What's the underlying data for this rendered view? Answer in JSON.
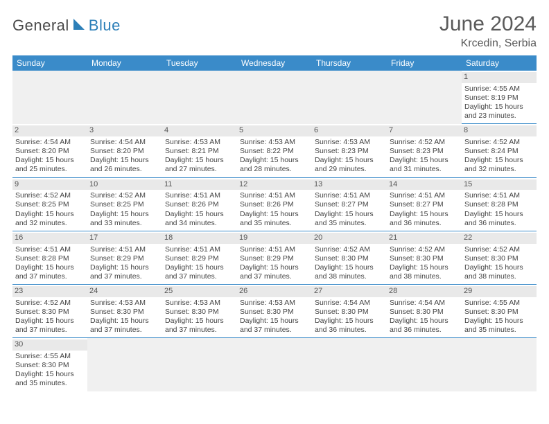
{
  "logo": {
    "text1": "General",
    "text2": "Blue"
  },
  "title": "June 2024",
  "location": "Krcedin, Serbia",
  "colors": {
    "header_bg": "#3a8bc9",
    "header_text": "#ffffff",
    "logo_accent": "#2c7fb8",
    "text": "#444444",
    "daynum_bg": "#e9e9e9",
    "rule": "#3a8bc9"
  },
  "day_headers": [
    "Sunday",
    "Monday",
    "Tuesday",
    "Wednesday",
    "Thursday",
    "Friday",
    "Saturday"
  ],
  "days": {
    "1": {
      "sunrise": "4:55 AM",
      "sunset": "8:19 PM",
      "daylight": "15 hours and 23 minutes."
    },
    "2": {
      "sunrise": "4:54 AM",
      "sunset": "8:20 PM",
      "daylight": "15 hours and 25 minutes."
    },
    "3": {
      "sunrise": "4:54 AM",
      "sunset": "8:20 PM",
      "daylight": "15 hours and 26 minutes."
    },
    "4": {
      "sunrise": "4:53 AM",
      "sunset": "8:21 PM",
      "daylight": "15 hours and 27 minutes."
    },
    "5": {
      "sunrise": "4:53 AM",
      "sunset": "8:22 PM",
      "daylight": "15 hours and 28 minutes."
    },
    "6": {
      "sunrise": "4:53 AM",
      "sunset": "8:23 PM",
      "daylight": "15 hours and 29 minutes."
    },
    "7": {
      "sunrise": "4:52 AM",
      "sunset": "8:23 PM",
      "daylight": "15 hours and 31 minutes."
    },
    "8": {
      "sunrise": "4:52 AM",
      "sunset": "8:24 PM",
      "daylight": "15 hours and 32 minutes."
    },
    "9": {
      "sunrise": "4:52 AM",
      "sunset": "8:25 PM",
      "daylight": "15 hours and 32 minutes."
    },
    "10": {
      "sunrise": "4:52 AM",
      "sunset": "8:25 PM",
      "daylight": "15 hours and 33 minutes."
    },
    "11": {
      "sunrise": "4:51 AM",
      "sunset": "8:26 PM",
      "daylight": "15 hours and 34 minutes."
    },
    "12": {
      "sunrise": "4:51 AM",
      "sunset": "8:26 PM",
      "daylight": "15 hours and 35 minutes."
    },
    "13": {
      "sunrise": "4:51 AM",
      "sunset": "8:27 PM",
      "daylight": "15 hours and 35 minutes."
    },
    "14": {
      "sunrise": "4:51 AM",
      "sunset": "8:27 PM",
      "daylight": "15 hours and 36 minutes."
    },
    "15": {
      "sunrise": "4:51 AM",
      "sunset": "8:28 PM",
      "daylight": "15 hours and 36 minutes."
    },
    "16": {
      "sunrise": "4:51 AM",
      "sunset": "8:28 PM",
      "daylight": "15 hours and 37 minutes."
    },
    "17": {
      "sunrise": "4:51 AM",
      "sunset": "8:29 PM",
      "daylight": "15 hours and 37 minutes."
    },
    "18": {
      "sunrise": "4:51 AM",
      "sunset": "8:29 PM",
      "daylight": "15 hours and 37 minutes."
    },
    "19": {
      "sunrise": "4:51 AM",
      "sunset": "8:29 PM",
      "daylight": "15 hours and 37 minutes."
    },
    "20": {
      "sunrise": "4:52 AM",
      "sunset": "8:30 PM",
      "daylight": "15 hours and 38 minutes."
    },
    "21": {
      "sunrise": "4:52 AM",
      "sunset": "8:30 PM",
      "daylight": "15 hours and 38 minutes."
    },
    "22": {
      "sunrise": "4:52 AM",
      "sunset": "8:30 PM",
      "daylight": "15 hours and 38 minutes."
    },
    "23": {
      "sunrise": "4:52 AM",
      "sunset": "8:30 PM",
      "daylight": "15 hours and 37 minutes."
    },
    "24": {
      "sunrise": "4:53 AM",
      "sunset": "8:30 PM",
      "daylight": "15 hours and 37 minutes."
    },
    "25": {
      "sunrise": "4:53 AM",
      "sunset": "8:30 PM",
      "daylight": "15 hours and 37 minutes."
    },
    "26": {
      "sunrise": "4:53 AM",
      "sunset": "8:30 PM",
      "daylight": "15 hours and 37 minutes."
    },
    "27": {
      "sunrise": "4:54 AM",
      "sunset": "8:30 PM",
      "daylight": "15 hours and 36 minutes."
    },
    "28": {
      "sunrise": "4:54 AM",
      "sunset": "8:30 PM",
      "daylight": "15 hours and 36 minutes."
    },
    "29": {
      "sunrise": "4:55 AM",
      "sunset": "8:30 PM",
      "daylight": "15 hours and 35 minutes."
    },
    "30": {
      "sunrise": "4:55 AM",
      "sunset": "8:30 PM",
      "daylight": "15 hours and 35 minutes."
    }
  },
  "labels": {
    "sunrise": "Sunrise: ",
    "sunset": "Sunset: ",
    "daylight": "Daylight: "
  },
  "layout": {
    "first_weekday_index": 6,
    "days_in_month": 30,
    "columns": 7
  }
}
